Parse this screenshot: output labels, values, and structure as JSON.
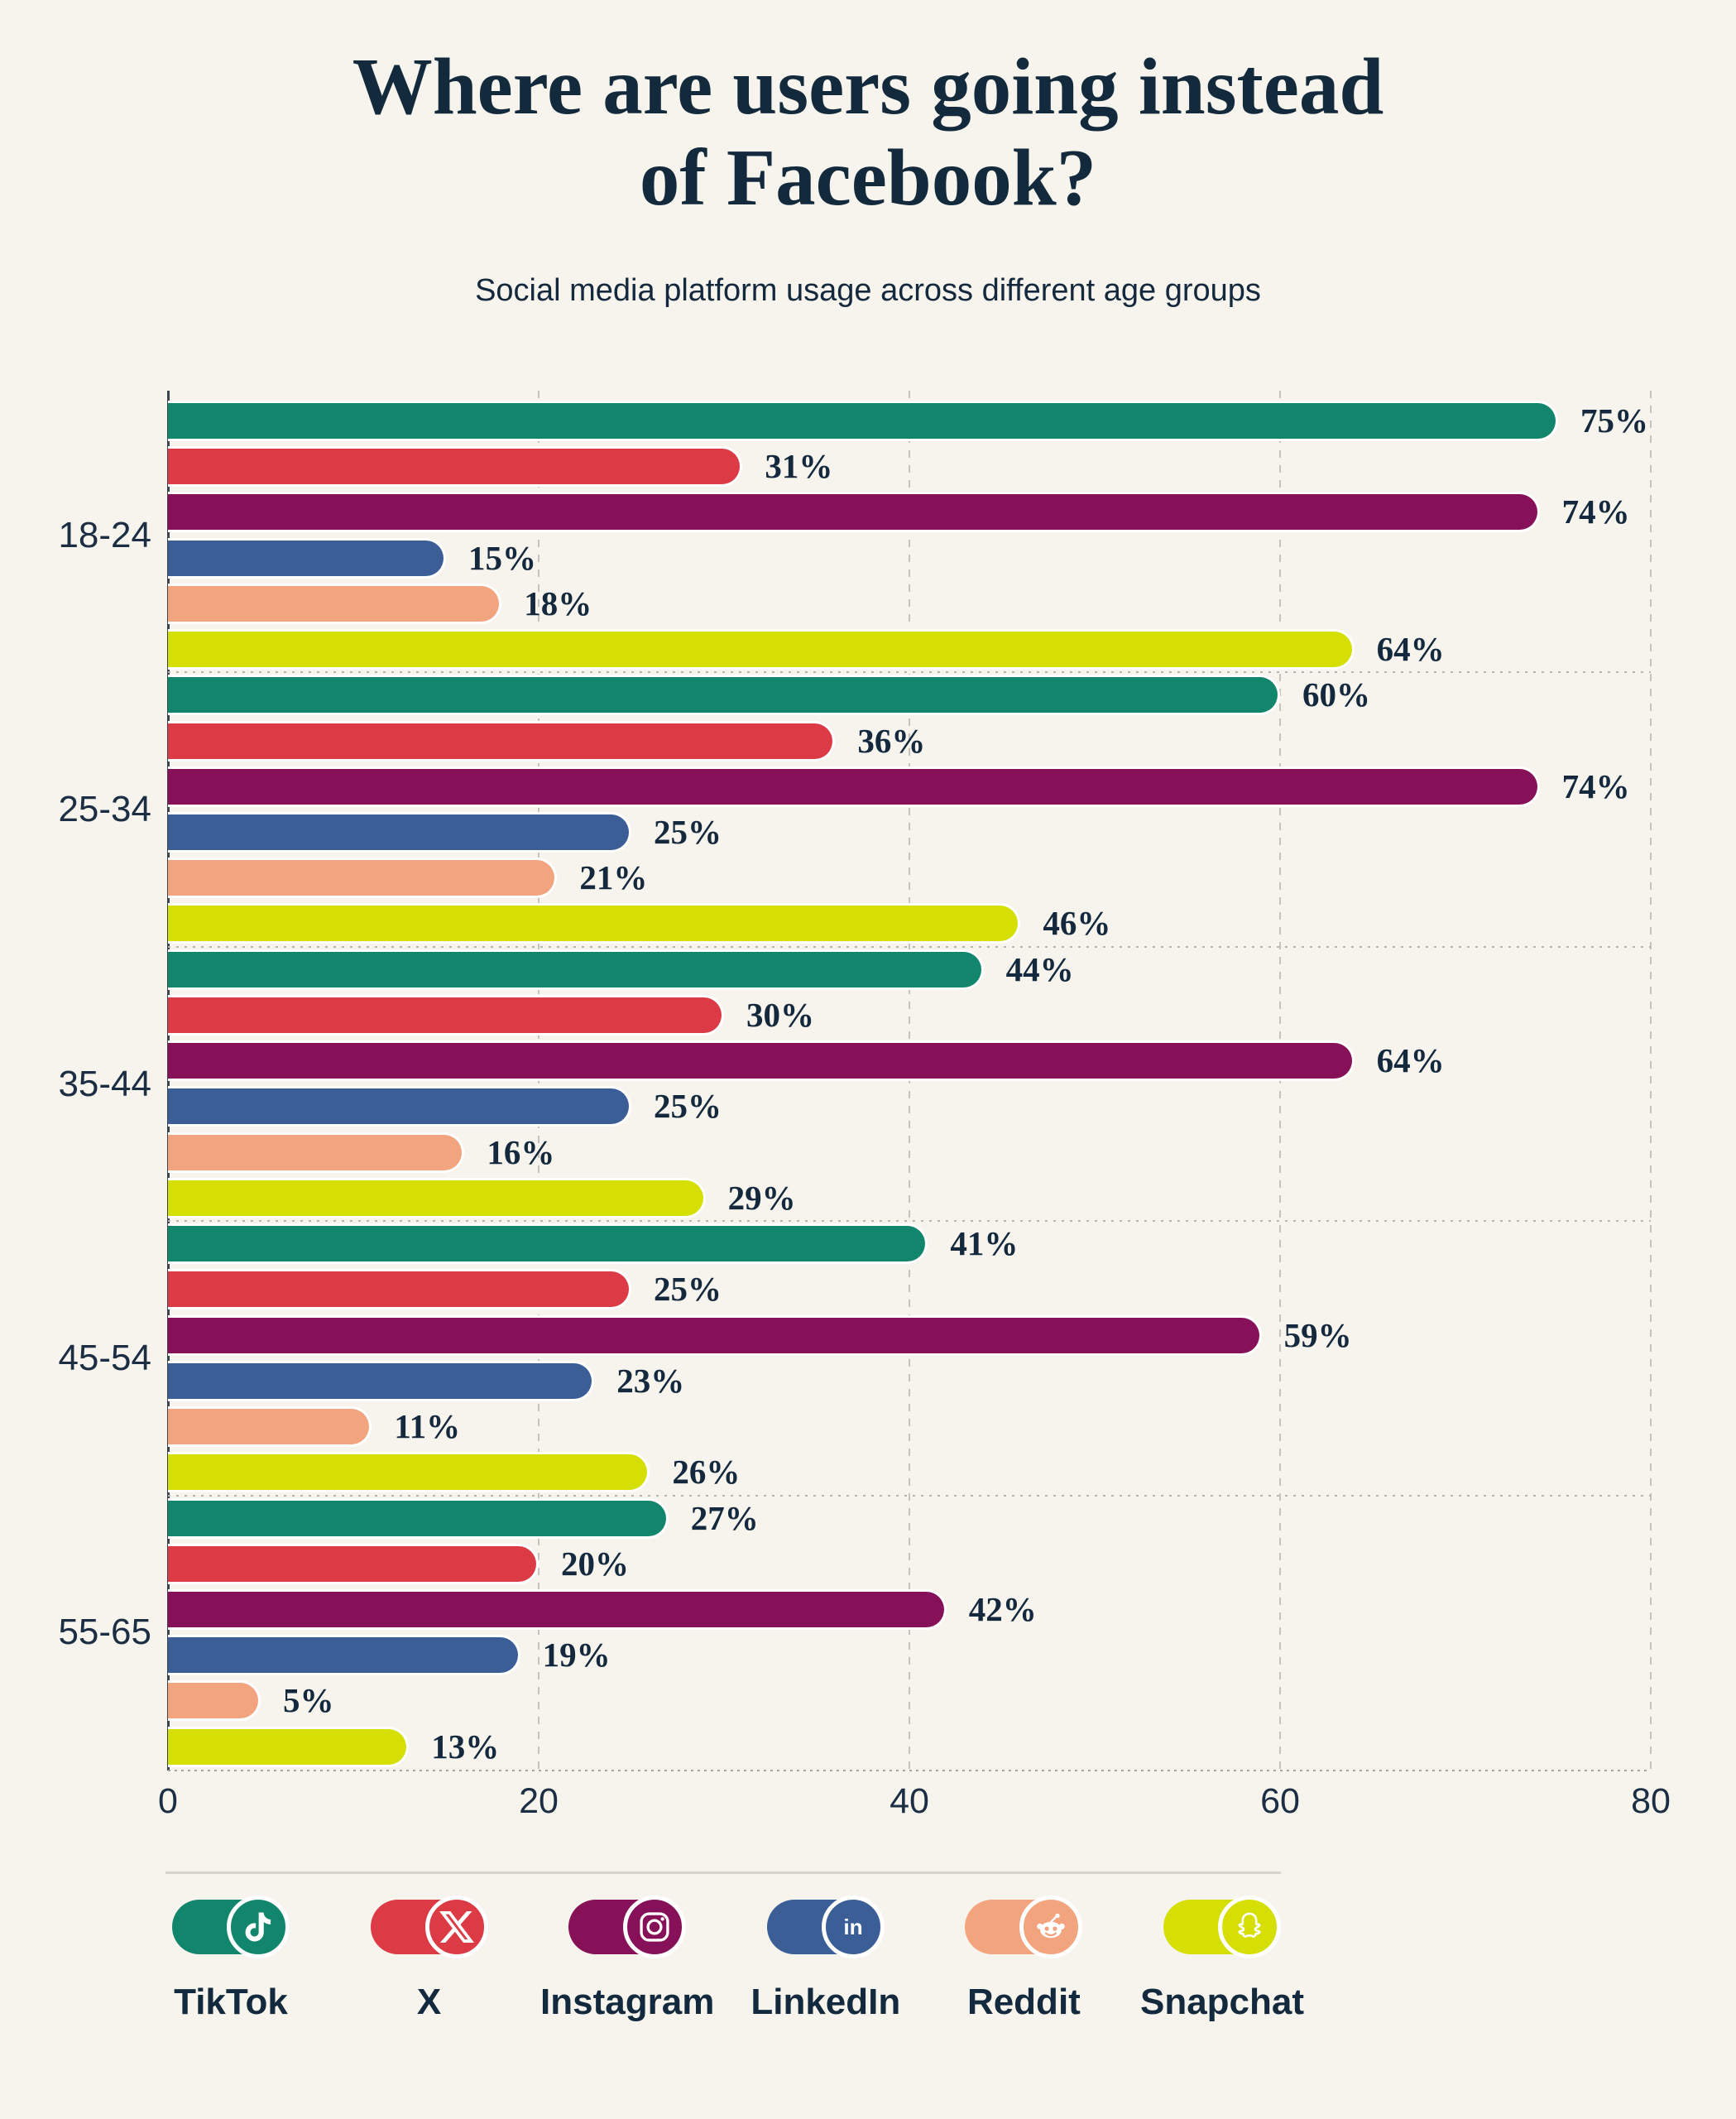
{
  "header": {
    "title_line1": "Where are users going instead",
    "title_line2": "of Facebook?",
    "subtitle": "Social media platform usage across different age groups"
  },
  "chart_data": {
    "type": "bar",
    "orientation": "horizontal",
    "title": "Where are users going instead of Facebook?",
    "subtitle": "Social media platform usage across different age groups",
    "categories": [
      "18-24",
      "25-34",
      "35-44",
      "45-54",
      "55-65"
    ],
    "series": [
      {
        "name": "TikTok",
        "icon": "tiktok-icon",
        "color": "#12866C",
        "values": [
          75,
          60,
          44,
          41,
          27
        ]
      },
      {
        "name": "X",
        "icon": "x-icon",
        "color": "#DC3B45",
        "values": [
          31,
          36,
          30,
          25,
          20
        ]
      },
      {
        "name": "Instagram",
        "icon": "instagram-icon",
        "color": "#871159",
        "values": [
          74,
          74,
          64,
          59,
          42
        ]
      },
      {
        "name": "LinkedIn",
        "icon": "linkedin-icon",
        "color": "#3B5E97",
        "values": [
          15,
          25,
          25,
          23,
          19
        ]
      },
      {
        "name": "Reddit",
        "icon": "reddit-icon",
        "color": "#F2A47E",
        "values": [
          18,
          21,
          16,
          11,
          5
        ]
      },
      {
        "name": "Snapchat",
        "icon": "snapchat-icon",
        "color": "#D6DF04",
        "values": [
          64,
          46,
          29,
          26,
          13
        ]
      }
    ],
    "xlim": [
      0,
      80
    ],
    "x_ticks": [
      "0",
      "20",
      "40",
      "60",
      "80"
    ],
    "value_suffix": "%",
    "grid": "vertical-dashed",
    "legend_position": "bottom"
  },
  "colors": {
    "background": "#F7F4ED",
    "text": "#14293D",
    "gridline": "#C4C4BC",
    "axis": "#3A444E",
    "separator": "#B5B5AD",
    "legend_divider": "#D6D4CC"
  }
}
